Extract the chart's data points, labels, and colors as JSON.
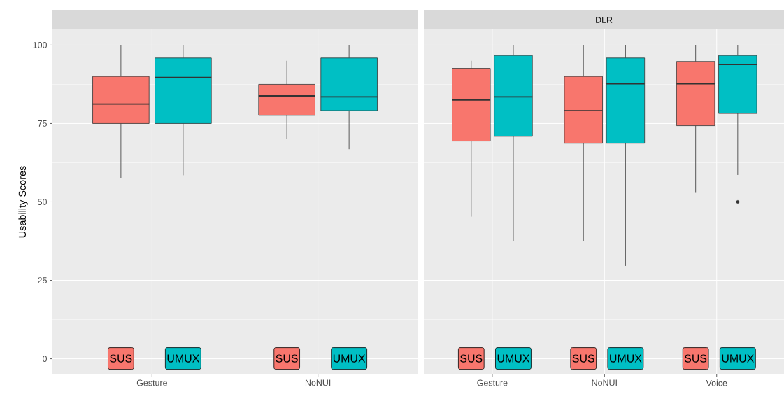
{
  "chart_data": [
    {
      "type": "box",
      "ylabel": "Usability Scores",
      "categories": [
        "Gesture",
        "NoNUI"
      ],
      "series": [
        {
          "color": "#f8766d",
          "boxes": [
            {
              "low": 57.5,
              "q1": 75,
              "median": 81.2,
              "q3": 90,
              "high": 100
            },
            {
              "low": 70,
              "q1": 77.6,
              "median": 83.8,
              "q3": 87.5,
              "high": 95
            }
          ]
        },
        {
          "color": "#00bfc4",
          "boxes": [
            {
              "low": 58.5,
              "q1": 75,
              "median": 89.7,
              "q3": 95.9,
              "high": 100
            },
            {
              "low": 66.8,
              "q1": 79.1,
              "median": 83.5,
              "q3": 95.9,
              "high": 100
            }
          ]
        }
      ],
      "ylim": [
        -5,
        105
      ],
      "yticks": [
        0,
        25,
        50,
        75,
        100
      ],
      "grid": true,
      "annotations": [
        "SUS",
        "UMUX",
        "SUS",
        "UMUX"
      ]
    },
    {
      "type": "box",
      "title": "DLR",
      "categories": [
        "Gesture",
        "NoNUI",
        "Voice"
      ],
      "series": [
        {
          "color": "#f8766d",
          "boxes": [
            {
              "low": 45.3,
              "q1": 69.4,
              "median": 82.5,
              "q3": 92.6,
              "high": 95
            },
            {
              "low": 37.5,
              "q1": 68.7,
              "median": 79.1,
              "q3": 90,
              "high": 100
            },
            {
              "low": 52.9,
              "q1": 74.3,
              "median": 87.7,
              "q3": 94.8,
              "high": 100
            }
          ]
        },
        {
          "color": "#00bfc4",
          "boxes": [
            {
              "low": 37.5,
              "q1": 70.9,
              "median": 83.5,
              "q3": 96.7,
              "high": 100
            },
            {
              "low": 29.6,
              "q1": 68.7,
              "median": 87.7,
              "q3": 95.9,
              "high": 100
            },
            {
              "low": 58.6,
              "q1": 78.2,
              "median": 93.8,
              "q3": 96.7,
              "high": 100,
              "outliers": [
                50
              ]
            }
          ]
        }
      ],
      "ylim": [
        -5,
        105
      ],
      "yticks": [
        0,
        25,
        50,
        75,
        100
      ],
      "grid": true,
      "tick_labels": "x",
      "annotations": [
        "SUS",
        "UMUX",
        "SUS",
        "UMUX",
        "SUS",
        "UMUX"
      ]
    }
  ]
}
